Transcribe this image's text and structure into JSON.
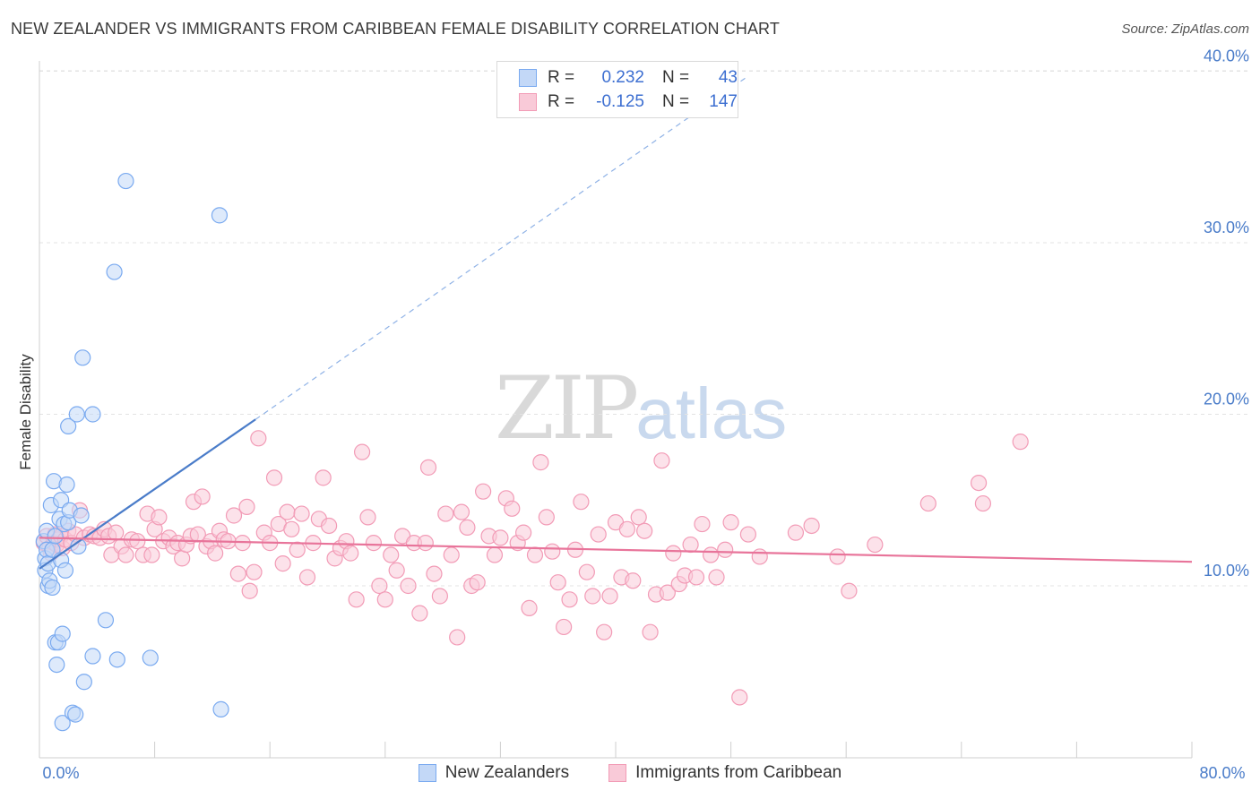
{
  "title": "NEW ZEALANDER VS IMMIGRANTS FROM CARIBBEAN FEMALE DISABILITY CORRELATION CHART",
  "source": "Source: ZipAtlas.com",
  "watermark": {
    "zip": "ZIP",
    "atlas": "atlas"
  },
  "legend": {
    "rows": [
      {
        "r_label": "R =",
        "r_value": "0.232",
        "n_label": "N =",
        "n_value": "43",
        "color": "#7aaaf0",
        "fill": "#c3d8f7"
      },
      {
        "r_label": "R =",
        "r_value": "-0.125",
        "n_label": "N =",
        "n_value": "147",
        "color": "#f29bb6",
        "fill": "#f9cad8"
      }
    ]
  },
  "bottom_legend": [
    {
      "label": "New Zealanders",
      "color": "#7aaaf0",
      "fill": "#c3d8f7"
    },
    {
      "label": "Immigrants from Caribbean",
      "color": "#f29bb6",
      "fill": "#f9cad8"
    }
  ],
  "chart_data": {
    "type": "scatter",
    "title": "NEW ZEALANDER VS IMMIGRANTS FROM CARIBBEAN FEMALE DISABILITY CORRELATION CHART",
    "xlabel": "",
    "ylabel": "Female Disability",
    "xlim": [
      0,
      80
    ],
    "ylim": [
      0,
      41
    ],
    "x_tick_labels": [
      "0.0%",
      "80.0%"
    ],
    "y_ticks": [
      10,
      20,
      30,
      40
    ],
    "y_tick_labels": [
      "10.0%",
      "20.0%",
      "30.0%",
      "40.0%"
    ],
    "grid": true,
    "series": [
      {
        "name": "New Zealanders",
        "color": "#4a7cc9",
        "marker_stroke": "#7aaaf0",
        "marker_fill": "#c3d8f7",
        "trend": {
          "x": [
            0,
            15
          ],
          "y": [
            11.0,
            19.7
          ],
          "dashed_extension_to": [
            49,
            39.6
          ]
        },
        "points": [
          [
            0.3,
            12.6
          ],
          [
            0.4,
            11.6
          ],
          [
            0.4,
            10.9
          ],
          [
            0.5,
            13.2
          ],
          [
            0.5,
            12.1
          ],
          [
            0.6,
            11.3
          ],
          [
            0.6,
            10.0
          ],
          [
            0.7,
            10.3
          ],
          [
            0.8,
            14.7
          ],
          [
            0.9,
            9.9
          ],
          [
            0.9,
            12.1
          ],
          [
            1.0,
            16.1
          ],
          [
            1.1,
            12.9
          ],
          [
            1.1,
            6.7
          ],
          [
            1.2,
            5.4
          ],
          [
            1.3,
            6.7
          ],
          [
            1.4,
            13.9
          ],
          [
            1.5,
            15.0
          ],
          [
            1.5,
            11.5
          ],
          [
            1.6,
            7.2
          ],
          [
            1.6,
            2.0
          ],
          [
            1.7,
            13.6
          ],
          [
            1.8,
            10.9
          ],
          [
            1.9,
            15.9
          ],
          [
            2.0,
            13.7
          ],
          [
            2.0,
            19.3
          ],
          [
            2.1,
            14.4
          ],
          [
            2.3,
            2.6
          ],
          [
            2.5,
            2.5
          ],
          [
            2.6,
            20.0
          ],
          [
            2.7,
            12.3
          ],
          [
            2.9,
            14.1
          ],
          [
            3.0,
            23.3
          ],
          [
            3.1,
            4.4
          ],
          [
            3.7,
            20.0
          ],
          [
            3.7,
            5.9
          ],
          [
            4.6,
            8.0
          ],
          [
            5.2,
            28.3
          ],
          [
            5.4,
            5.7
          ],
          [
            6.0,
            33.6
          ],
          [
            7.7,
            5.8
          ],
          [
            12.5,
            31.6
          ],
          [
            12.6,
            2.8
          ]
        ]
      },
      {
        "name": "Immigrants from Caribbean",
        "color": "#e8749a",
        "marker_stroke": "#f29bb6",
        "marker_fill": "#f9cad8",
        "trend": {
          "x": [
            0,
            80
          ],
          "y": [
            12.8,
            11.4
          ]
        },
        "points": [
          [
            0.3,
            12.5
          ],
          [
            0.5,
            12.9
          ],
          [
            0.7,
            12.2
          ],
          [
            0.8,
            11.9
          ],
          [
            1.0,
            12.5
          ],
          [
            1.1,
            13.0
          ],
          [
            1.2,
            12.4
          ],
          [
            1.3,
            12.7
          ],
          [
            1.5,
            12.9
          ],
          [
            1.6,
            12.2
          ],
          [
            1.8,
            12.7
          ],
          [
            2.0,
            13.2
          ],
          [
            2.2,
            12.5
          ],
          [
            2.5,
            13.0
          ],
          [
            2.8,
            14.4
          ],
          [
            3.1,
            12.8
          ],
          [
            3.5,
            13.0
          ],
          [
            3.8,
            12.9
          ],
          [
            4.2,
            12.8
          ],
          [
            4.5,
            13.3
          ],
          [
            4.8,
            12.9
          ],
          [
            5.0,
            11.8
          ],
          [
            5.3,
            13.1
          ],
          [
            5.7,
            12.3
          ],
          [
            6.0,
            11.8
          ],
          [
            6.4,
            12.7
          ],
          [
            6.8,
            12.6
          ],
          [
            7.2,
            11.8
          ],
          [
            7.5,
            14.2
          ],
          [
            7.8,
            11.8
          ],
          [
            8.0,
            13.3
          ],
          [
            8.3,
            14.0
          ],
          [
            8.6,
            12.6
          ],
          [
            9.0,
            12.8
          ],
          [
            9.3,
            12.3
          ],
          [
            9.6,
            12.5
          ],
          [
            9.9,
            11.6
          ],
          [
            10.2,
            12.4
          ],
          [
            10.5,
            12.9
          ],
          [
            10.7,
            14.9
          ],
          [
            11.0,
            13.0
          ],
          [
            11.3,
            15.2
          ],
          [
            11.6,
            12.3
          ],
          [
            11.9,
            12.6
          ],
          [
            12.2,
            11.9
          ],
          [
            12.5,
            13.2
          ],
          [
            12.8,
            12.7
          ],
          [
            13.1,
            12.6
          ],
          [
            13.5,
            14.1
          ],
          [
            13.8,
            10.7
          ],
          [
            14.1,
            12.5
          ],
          [
            14.4,
            14.6
          ],
          [
            14.6,
            9.7
          ],
          [
            14.9,
            10.8
          ],
          [
            15.2,
            18.6
          ],
          [
            15.6,
            13.1
          ],
          [
            16.0,
            12.5
          ],
          [
            16.3,
            16.3
          ],
          [
            16.6,
            13.6
          ],
          [
            16.9,
            11.3
          ],
          [
            17.2,
            14.3
          ],
          [
            17.5,
            13.3
          ],
          [
            17.9,
            12.1
          ],
          [
            18.2,
            14.2
          ],
          [
            18.6,
            10.5
          ],
          [
            19.0,
            12.5
          ],
          [
            19.4,
            13.9
          ],
          [
            19.7,
            16.3
          ],
          [
            20.1,
            13.5
          ],
          [
            20.5,
            11.6
          ],
          [
            20.9,
            12.2
          ],
          [
            21.3,
            12.6
          ],
          [
            21.6,
            11.9
          ],
          [
            22.0,
            9.2
          ],
          [
            22.4,
            17.8
          ],
          [
            22.8,
            14.0
          ],
          [
            23.2,
            12.5
          ],
          [
            23.6,
            10.0
          ],
          [
            24.0,
            9.2
          ],
          [
            24.4,
            11.8
          ],
          [
            24.8,
            10.9
          ],
          [
            25.2,
            12.9
          ],
          [
            25.6,
            10.0
          ],
          [
            26.0,
            12.5
          ],
          [
            26.4,
            8.4
          ],
          [
            26.8,
            12.5
          ],
          [
            27.0,
            16.9
          ],
          [
            27.4,
            10.7
          ],
          [
            27.8,
            9.4
          ],
          [
            28.2,
            14.2
          ],
          [
            28.6,
            11.8
          ],
          [
            29.0,
            7.0
          ],
          [
            29.3,
            14.3
          ],
          [
            29.7,
            13.4
          ],
          [
            30.0,
            10.0
          ],
          [
            30.4,
            10.2
          ],
          [
            30.8,
            15.5
          ],
          [
            31.2,
            12.9
          ],
          [
            31.6,
            11.8
          ],
          [
            32.0,
            12.8
          ],
          [
            32.4,
            15.1
          ],
          [
            32.8,
            14.5
          ],
          [
            33.2,
            12.5
          ],
          [
            33.6,
            13.1
          ],
          [
            34.0,
            8.7
          ],
          [
            34.4,
            11.8
          ],
          [
            34.8,
            17.2
          ],
          [
            35.2,
            14.0
          ],
          [
            35.6,
            12.0
          ],
          [
            36.0,
            10.2
          ],
          [
            36.4,
            7.6
          ],
          [
            36.8,
            9.2
          ],
          [
            37.2,
            12.1
          ],
          [
            37.6,
            14.9
          ],
          [
            38.0,
            10.8
          ],
          [
            38.4,
            9.4
          ],
          [
            38.8,
            13.0
          ],
          [
            39.2,
            7.3
          ],
          [
            39.6,
            9.4
          ],
          [
            40.0,
            13.7
          ],
          [
            40.4,
            10.5
          ],
          [
            40.8,
            13.3
          ],
          [
            41.2,
            10.3
          ],
          [
            41.6,
            14.0
          ],
          [
            42.0,
            13.2
          ],
          [
            42.4,
            7.3
          ],
          [
            42.8,
            9.5
          ],
          [
            43.2,
            17.3
          ],
          [
            43.6,
            9.6
          ],
          [
            44.0,
            11.9
          ],
          [
            44.4,
            10.1
          ],
          [
            44.8,
            10.6
          ],
          [
            45.2,
            12.4
          ],
          [
            45.6,
            10.5
          ],
          [
            46.0,
            13.6
          ],
          [
            46.6,
            11.8
          ],
          [
            47.0,
            10.5
          ],
          [
            47.6,
            12.1
          ],
          [
            48.0,
            13.7
          ],
          [
            48.6,
            3.5
          ],
          [
            49.2,
            13.0
          ],
          [
            50.0,
            11.7
          ],
          [
            52.5,
            13.1
          ],
          [
            53.6,
            13.5
          ],
          [
            55.4,
            11.7
          ],
          [
            56.2,
            9.7
          ],
          [
            58.0,
            12.4
          ],
          [
            61.7,
            14.8
          ],
          [
            65.2,
            16.0
          ],
          [
            65.5,
            14.8
          ],
          [
            68.1,
            18.4
          ]
        ]
      }
    ]
  }
}
